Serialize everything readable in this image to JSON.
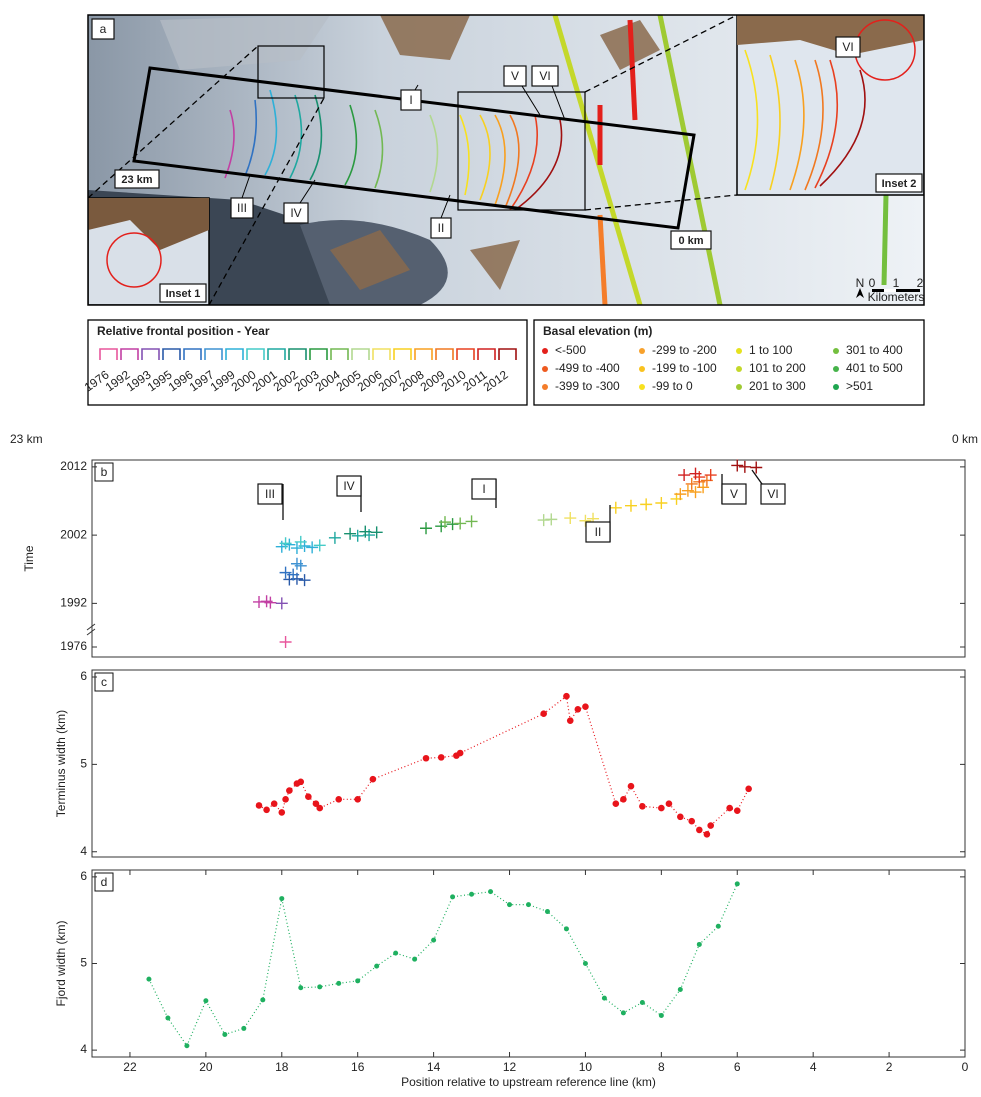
{
  "map": {
    "panel_label": "a",
    "start_label": "23 km",
    "end_label": "0 km",
    "front_labels": [
      "I",
      "II",
      "III",
      "IV",
      "V",
      "VI"
    ],
    "inset1_label": "Inset 1",
    "inset2_label": "Inset 2",
    "inset2_front_label": "VI",
    "north": "N",
    "scale_ticks": [
      0,
      1,
      2
    ],
    "scale_unit": "Kilometers"
  },
  "year_legend": {
    "title": "Relative frontal position - Year"
  },
  "basal_legend": {
    "title": "Basal elevation (m)",
    "items": [
      {
        "label": "<-500",
        "color": "#e3201b"
      },
      {
        "label": "-499 to -400",
        "color": "#ee5a1f"
      },
      {
        "label": "-399 to -300",
        "color": "#f47d2a"
      },
      {
        "label": "-299 to -200",
        "color": "#f8a12c"
      },
      {
        "label": "-199 to -100",
        "color": "#f9c21f"
      },
      {
        "label": "-99 to 0",
        "color": "#f8e11f"
      },
      {
        "label": "1 to 100",
        "color": "#e6e21e"
      },
      {
        "label": "101 to 200",
        "color": "#c4d82a"
      },
      {
        "label": "201 to 300",
        "color": "#9fca33"
      },
      {
        "label": "301 to 400",
        "color": "#74bf3e"
      },
      {
        "label": "401 to 500",
        "color": "#46b34a"
      },
      {
        "label": ">501",
        "color": "#1fa650"
      }
    ]
  },
  "distance_labels": {
    "left": "23 km",
    "right": "0 km"
  },
  "chart_data": [
    {
      "type": "scatter",
      "panel_label": "b",
      "ylabel": "Time",
      "xlim": [
        23,
        0
      ],
      "ylim": [
        1975,
        2013
      ],
      "y_break": [
        1977,
        1990
      ],
      "yticks": [
        1976,
        1992,
        2002,
        2012
      ],
      "annotations": [
        "III",
        "IV",
        "I",
        "II",
        "V",
        "VI"
      ],
      "series": [
        {
          "name": "1976",
          "color": "#e8569c",
          "x": [
            17.9
          ],
          "values": [
            1976.5
          ]
        },
        {
          "name": "1992",
          "color": "#c23fa3",
          "x": [
            18.6,
            18.4,
            18.3
          ],
          "values": [
            1992.2,
            1992.3,
            1992.1
          ]
        },
        {
          "name": "1993",
          "color": "#8351b3",
          "x": [
            18.0
          ],
          "values": [
            1992.0
          ]
        },
        {
          "name": "1995",
          "color": "#2a5aa8",
          "x": [
            17.8,
            17.6,
            17.4
          ],
          "values": [
            1995.5,
            1995.6,
            1995.4
          ]
        },
        {
          "name": "1996",
          "color": "#3072c2",
          "x": [
            17.9,
            17.7
          ],
          "values": [
            1996.5,
            1996.2
          ]
        },
        {
          "name": "1997",
          "color": "#3f92d2",
          "x": [
            17.6,
            17.5
          ],
          "values": [
            1997.8,
            1997.5
          ]
        },
        {
          "name": "1999",
          "color": "#2eb0d8",
          "x": [
            18.0,
            17.8,
            17.6,
            17.4,
            17.2
          ],
          "values": [
            2000.3,
            2000.6,
            2000.1,
            2000.4,
            2000.2
          ]
        },
        {
          "name": "2000",
          "color": "#45cbc8",
          "x": [
            17.9,
            17.5,
            17.0
          ],
          "values": [
            2000.8,
            2001.0,
            2000.5
          ]
        },
        {
          "name": "2001",
          "color": "#1fa8a0",
          "x": [
            16.6,
            16.0,
            15.7
          ],
          "values": [
            2001.6,
            2001.9,
            2002.0
          ]
        },
        {
          "name": "2002",
          "color": "#18906f",
          "x": [
            16.2,
            15.8,
            15.5
          ],
          "values": [
            2002.2,
            2002.5,
            2002.4
          ]
        },
        {
          "name": "2003",
          "color": "#2a9a40",
          "x": [
            14.2,
            13.8,
            13.5
          ],
          "values": [
            2003.0,
            2003.3,
            2003.6
          ]
        },
        {
          "name": "2004",
          "color": "#72b852",
          "x": [
            13.7,
            13.3,
            13.0
          ],
          "values": [
            2003.9,
            2003.7,
            2004.0
          ]
        },
        {
          "name": "2005",
          "color": "#b2d890",
          "x": [
            11.1,
            10.9
          ],
          "values": [
            2004.2,
            2004.3
          ]
        },
        {
          "name": "2006",
          "color": "#f0e060",
          "x": [
            10.4,
            10.0,
            9.8
          ],
          "values": [
            2004.5,
            2004.1,
            2004.4
          ]
        },
        {
          "name": "2007",
          "color": "#f8d020",
          "x": [
            9.2,
            8.8,
            8.4,
            8.0,
            7.6
          ],
          "values": [
            2006.0,
            2006.3,
            2006.5,
            2006.7,
            2007.3
          ]
        },
        {
          "name": "2008",
          "color": "#f8a020",
          "x": [
            7.5,
            7.3,
            7.1,
            6.9
          ],
          "values": [
            2008.0,
            2008.5,
            2008.3,
            2009.0
          ]
        },
        {
          "name": "2009",
          "color": "#f07820",
          "x": [
            7.2,
            7.0,
            6.8
          ],
          "values": [
            2009.5,
            2009.8,
            2010.0
          ]
        },
        {
          "name": "2010",
          "color": "#e84020",
          "x": [
            7.0,
            6.7
          ],
          "values": [
            2010.5,
            2010.8
          ]
        },
        {
          "name": "2011",
          "color": "#d02020",
          "x": [
            7.4,
            7.1
          ],
          "values": [
            2010.8,
            2011.0
          ]
        },
        {
          "name": "2012",
          "color": "#a01010",
          "x": [
            6.0,
            5.8,
            5.5
          ],
          "values": [
            2012.2,
            2012.0,
            2011.9
          ]
        }
      ]
    },
    {
      "type": "line",
      "panel_label": "c",
      "ylabel": "Terminus width (km)",
      "xlim": [
        23,
        0
      ],
      "ylim": [
        3.94,
        6.08
      ],
      "yticks": [
        4,
        5,
        6
      ],
      "color": "#e8141b",
      "line_style": "dotted",
      "x": [
        18.6,
        18.4,
        18.2,
        18.0,
        17.9,
        17.8,
        17.6,
        17.5,
        17.3,
        17.1,
        17.0,
        16.5,
        16.0,
        15.6,
        14.2,
        13.8,
        13.4,
        13.3,
        11.1,
        10.5,
        10.4,
        10.2,
        10.0,
        9.2,
        9.0,
        8.8,
        8.5,
        8.0,
        7.8,
        7.5,
        7.2,
        7.0,
        6.8,
        6.7,
        6.2,
        6.0,
        5.7
      ],
      "values": [
        4.53,
        4.48,
        4.55,
        4.45,
        4.6,
        4.7,
        4.78,
        4.8,
        4.63,
        4.55,
        4.5,
        4.6,
        4.6,
        4.83,
        5.07,
        5.08,
        5.1,
        5.13,
        5.58,
        5.78,
        5.5,
        5.63,
        5.66,
        4.55,
        4.6,
        4.75,
        4.52,
        4.5,
        4.55,
        4.4,
        4.35,
        4.25,
        4.2,
        4.3,
        4.5,
        4.47,
        4.72
      ]
    },
    {
      "type": "line",
      "panel_label": "d",
      "ylabel": "Fjord width (km)",
      "xlabel": "Position relative to upstream reference line (km)",
      "xlim": [
        23,
        0
      ],
      "xticks": [
        22,
        20,
        18,
        16,
        14,
        12,
        10,
        8,
        6,
        4,
        2,
        0
      ],
      "ylim": [
        3.92,
        6.08
      ],
      "yticks": [
        4,
        5,
        6
      ],
      "color": "#1fb060",
      "line_style": "dotted",
      "x": [
        21.5,
        21.0,
        20.5,
        20.0,
        19.5,
        19.0,
        18.5,
        18.0,
        17.5,
        17.0,
        16.5,
        16.0,
        15.5,
        15.0,
        14.5,
        14.0,
        13.5,
        13.0,
        12.5,
        12.0,
        11.5,
        11.0,
        10.5,
        10.0,
        9.5,
        9.0,
        8.5,
        8.0,
        7.5,
        7.0,
        6.5,
        6.0
      ],
      "values": [
        4.82,
        4.37,
        4.05,
        4.57,
        4.18,
        4.25,
        4.58,
        5.75,
        4.72,
        4.73,
        4.77,
        4.8,
        4.97,
        5.12,
        5.05,
        5.27,
        5.77,
        5.8,
        5.83,
        5.68,
        5.68,
        5.6,
        5.4,
        5.0,
        4.6,
        4.43,
        4.55,
        4.4,
        4.7,
        5.22,
        5.43,
        5.92
      ]
    }
  ]
}
